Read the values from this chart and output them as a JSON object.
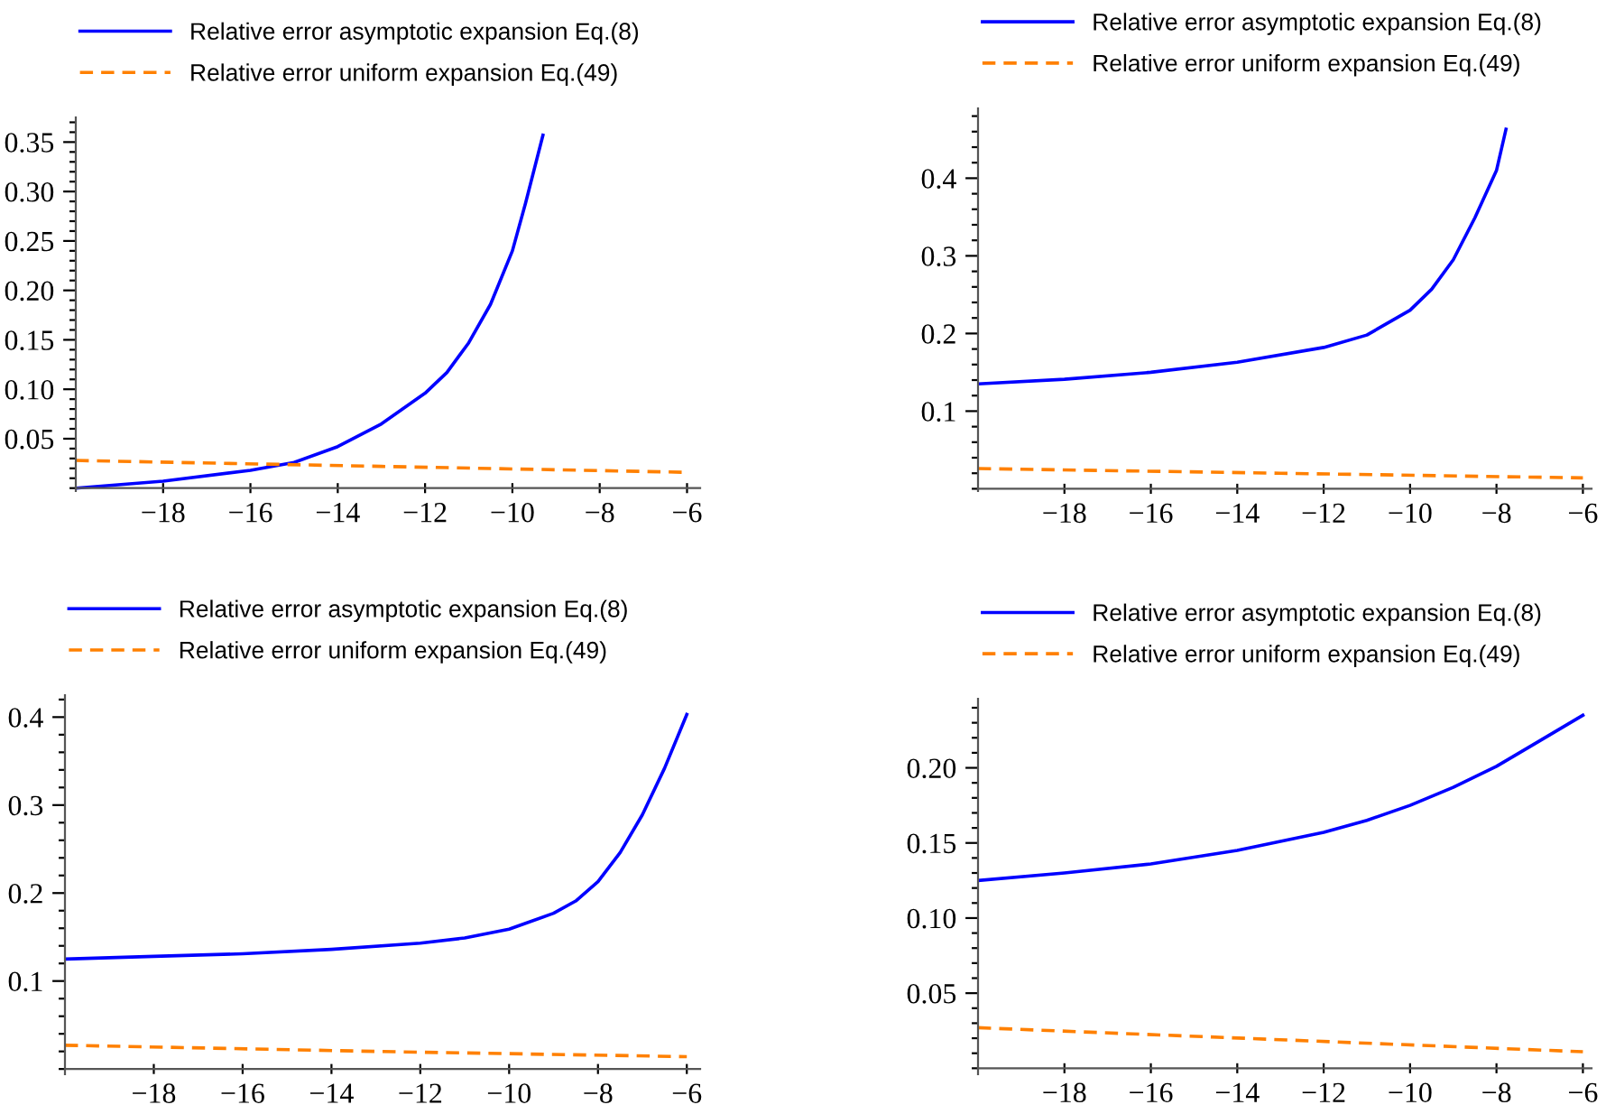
{
  "chart_data": [
    {
      "type": "line",
      "xlim": [
        -20,
        -5.7
      ],
      "ylim": [
        -0.003,
        0.375
      ],
      "xticks": [
        -18,
        -16,
        -14,
        -12,
        -10,
        -8,
        -6
      ],
      "yticks": [
        {
          "value": 0.05,
          "label": "0.05"
        },
        {
          "value": 0.1,
          "label": "0.10"
        },
        {
          "value": 0.15,
          "label": "0.15"
        },
        {
          "value": 0.2,
          "label": "0.20"
        },
        {
          "value": 0.25,
          "label": "0.25"
        },
        {
          "value": 0.3,
          "label": "0.30"
        },
        {
          "value": 0.35,
          "label": "0.35"
        }
      ],
      "legend": "top",
      "grid": false,
      "marker": "none",
      "series": [
        {
          "name": "Relative error asymptotic expansion Eq.(8)",
          "color": "#0000ff",
          "line_style": "solid",
          "x": [
            -20,
            -18,
            -16,
            -15,
            -14,
            -13,
            -12,
            -11.5,
            -11,
            -10.5,
            -10,
            -9.7,
            -9.3
          ],
          "values": [
            0.0,
            0.007,
            0.018,
            0.026,
            0.042,
            0.065,
            0.096,
            0.117,
            0.147,
            0.186,
            0.24,
            0.288,
            0.357
          ]
        },
        {
          "name": "Relative error uniform expansion Eq.(49)",
          "color": "#ff8000",
          "line_style": "dashed",
          "x": [
            -20,
            -13,
            -6
          ],
          "values": [
            0.028,
            0.022,
            0.016
          ]
        }
      ]
    },
    {
      "type": "line",
      "xlim": [
        -20,
        -5.8
      ],
      "ylim": [
        -0.003,
        0.49
      ],
      "xticks": [
        -18,
        -16,
        -14,
        -12,
        -10,
        -8,
        -6
      ],
      "yticks": [
        0.1,
        0.2,
        0.3,
        0.4
      ],
      "legend": "top",
      "grid": false,
      "marker": "none",
      "series": [
        {
          "name": "Relative error asymptotic expansion Eq.(8)",
          "color": "#0000ff",
          "line_style": "solid",
          "x": [
            -20,
            -18,
            -16,
            -14,
            -12,
            -11,
            -10,
            -9.5,
            -9,
            -8.5,
            -8,
            -7.78
          ],
          "values": [
            0.135,
            0.141,
            0.15,
            0.163,
            0.182,
            0.198,
            0.23,
            0.257,
            0.295,
            0.349,
            0.41,
            0.463
          ]
        },
        {
          "name": "Relative error uniform expansion Eq.(49)",
          "color": "#ff8000",
          "line_style": "dashed",
          "x": [
            -20,
            -13,
            -6
          ],
          "values": [
            0.026,
            0.02,
            0.014
          ]
        }
      ]
    },
    {
      "type": "line",
      "xlim": [
        -20,
        -5.7
      ],
      "ylim": [
        -0.006,
        0.425
      ],
      "xticks": [
        -18,
        -16,
        -14,
        -12,
        -10,
        -8,
        -6
      ],
      "yticks": [
        0.1,
        0.2,
        0.3,
        0.4
      ],
      "legend": "top",
      "grid": false,
      "marker": "none",
      "series": [
        {
          "name": "Relative error asymptotic expansion Eq.(8)",
          "color": "#0000ff",
          "line_style": "solid",
          "x": [
            -20,
            -18,
            -16,
            -14,
            -12,
            -11,
            -10,
            -9,
            -8.5,
            -8,
            -7.5,
            -7,
            -6.5,
            -6
          ],
          "values": [
            0.125,
            0.128,
            0.131,
            0.136,
            0.143,
            0.149,
            0.159,
            0.177,
            0.191,
            0.213,
            0.246,
            0.289,
            0.342,
            0.403
          ]
        },
        {
          "name": "Relative error uniform expansion Eq.(49)",
          "color": "#ff8000",
          "line_style": "dashed",
          "x": [
            -20,
            -13,
            -6
          ],
          "values": [
            0.027,
            0.02,
            0.014
          ]
        }
      ]
    },
    {
      "type": "line",
      "xlim": [
        -20,
        -5.8
      ],
      "ylim": [
        -0.004,
        0.246
      ],
      "xticks": [
        -18,
        -16,
        -14,
        -12,
        -10,
        -8,
        -6
      ],
      "yticks": [
        {
          "value": 0.05,
          "label": "0.05"
        },
        {
          "value": 0.1,
          "label": "0.10"
        },
        {
          "value": 0.15,
          "label": "0.15"
        },
        {
          "value": 0.2,
          "label": "0.20"
        }
      ],
      "legend": "top",
      "grid": false,
      "marker": "none",
      "series": [
        {
          "name": "Relative error asymptotic expansion Eq.(8)",
          "color": "#0000ff",
          "line_style": "solid",
          "x": [
            -20,
            -18,
            -16,
            -14,
            -12,
            -11,
            -10,
            -9,
            -8,
            -7,
            -6
          ],
          "values": [
            0.125,
            0.13,
            0.136,
            0.145,
            0.157,
            0.165,
            0.175,
            0.187,
            0.201,
            0.218,
            0.235
          ]
        },
        {
          "name": "Relative error uniform expansion Eq.(49)",
          "color": "#ff8000",
          "line_style": "dashed",
          "x": [
            -20,
            -13,
            -6
          ],
          "values": [
            0.027,
            0.019,
            0.011
          ]
        }
      ]
    }
  ]
}
